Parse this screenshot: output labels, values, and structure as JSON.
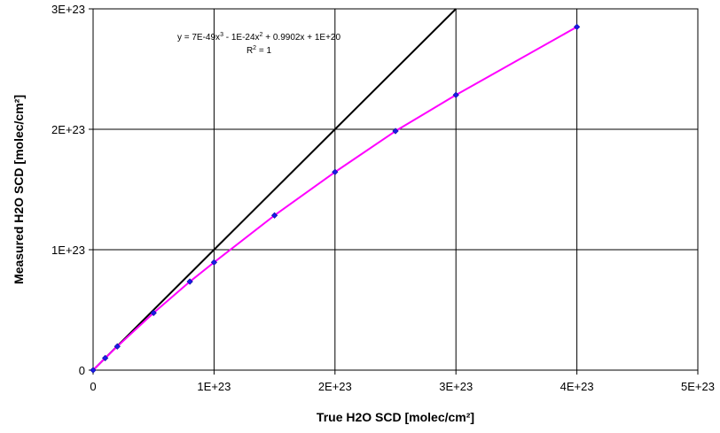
{
  "chart_data": {
    "type": "scatter",
    "title": "",
    "xlabel": "True H2O SCD [molec/cm²]",
    "ylabel": "Measured H2O SCD [molec/cm²]",
    "xlim": [
      0,
      5e+23
    ],
    "ylim": [
      0,
      3e+23
    ],
    "x_ticks": [
      0,
      1e+23,
      2e+23,
      3e+23,
      4e+23,
      5e+23
    ],
    "x_tick_labels": [
      "0",
      "1E+23",
      "2E+23",
      "3E+23",
      "4E+23",
      "5E+23"
    ],
    "y_ticks": [
      0,
      1e+23,
      2e+23,
      3e+23
    ],
    "y_tick_labels": [
      "0",
      "1E+23",
      "2E+23",
      "3E+23"
    ],
    "grid": true,
    "series": [
      {
        "role": "measurements",
        "color": "#1a1ae6",
        "marker": "diamond",
        "x": [
          0,
          1e+22,
          2e+22,
          5e+22,
          8e+22,
          1e+23,
          1.5e+23,
          2e+23,
          2.5e+23,
          3e+23,
          4e+23
        ],
        "y": [
          0,
          1e+22,
          1.97e+22,
          4.75e+22,
          7.35e+22,
          8.95e+22,
          1.285e+23,
          1.645e+23,
          1.985e+23,
          2.285e+23,
          2.85e+23
        ]
      },
      {
        "role": "trendline",
        "color": "#ff00ff",
        "x": [
          0,
          1e+22,
          2e+22,
          5e+22,
          8e+22,
          1e+23,
          1.5e+23,
          2e+23,
          2.5e+23,
          3e+23,
          4e+23
        ],
        "y": [
          0,
          1e+22,
          1.97e+22,
          4.75e+22,
          7.35e+22,
          8.95e+22,
          1.285e+23,
          1.645e+23,
          1.985e+23,
          2.285e+23,
          2.85e+23
        ]
      },
      {
        "role": "one-to-one line",
        "color": "#000000",
        "x": [
          0,
          3e+23
        ],
        "y": [
          0,
          3e+23
        ]
      }
    ],
    "annotation": {
      "equation_prefix": "y = 7E-49x",
      "equation_sup1": "3",
      "equation_mid": " - 1E-24x",
      "equation_sup2": "2",
      "equation_suffix": " + 0.9902x + 1E+20",
      "r_squared": "R",
      "r_squared_sup": "2",
      "r_squared_value": " = 1"
    }
  }
}
